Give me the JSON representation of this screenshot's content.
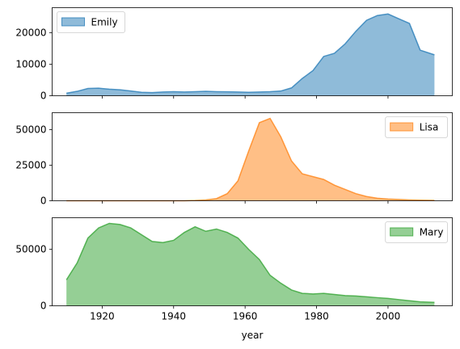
{
  "chart_data": {
    "type": "area",
    "layout": "stacked-subplots-shared-x",
    "xlabel": "year",
    "xlim": [
      1906,
      2018
    ],
    "xticks": [
      1920,
      1940,
      1960,
      1980,
      2000
    ],
    "x": [
      1910,
      1913,
      1916,
      1919,
      1922,
      1925,
      1928,
      1931,
      1934,
      1937,
      1940,
      1943,
      1946,
      1949,
      1952,
      1955,
      1958,
      1961,
      1964,
      1967,
      1970,
      1973,
      1976,
      1979,
      1982,
      1985,
      1988,
      1991,
      1994,
      1997,
      2000,
      2003,
      2006,
      2009,
      2013
    ],
    "grid": false,
    "series": [
      {
        "name": "Emily",
        "color": "#1f77b4",
        "ylim": [
          0,
          28000
        ],
        "yticks": [
          0,
          10000,
          20000
        ],
        "legend": "top-left",
        "values": [
          800,
          1400,
          2300,
          2400,
          2100,
          1900,
          1500,
          1100,
          1000,
          1200,
          1300,
          1200,
          1300,
          1400,
          1300,
          1250,
          1200,
          1100,
          1200,
          1300,
          1500,
          2500,
          5500,
          8000,
          12500,
          13500,
          16500,
          20500,
          24000,
          25500,
          26000,
          24500,
          23000,
          14500,
          13000
        ]
      },
      {
        "name": "Lisa",
        "color": "#ff7f0e",
        "ylim": [
          0,
          62000
        ],
        "yticks": [
          0,
          25000,
          50000
        ],
        "legend": "top-right",
        "values": [
          0,
          0,
          0,
          0,
          0,
          0,
          0,
          0,
          0,
          0,
          0,
          0,
          200,
          600,
          1500,
          5000,
          14000,
          35000,
          55000,
          58000,
          45000,
          28000,
          19000,
          17000,
          15000,
          11000,
          8000,
          5000,
          3000,
          1800,
          1200,
          900,
          600,
          400,
          300
        ]
      },
      {
        "name": "Mary",
        "color": "#2ca02c",
        "ylim": [
          0,
          78000
        ],
        "yticks": [
          0,
          50000
        ],
        "legend": "top-right",
        "values": [
          23000,
          38000,
          60000,
          69000,
          73000,
          72000,
          69000,
          63000,
          57000,
          56000,
          58000,
          65000,
          70000,
          66000,
          68000,
          65000,
          60000,
          50000,
          41000,
          27000,
          20000,
          14000,
          11000,
          10500,
          11000,
          10000,
          9000,
          8700,
          8000,
          7200,
          6500,
          5500,
          4500,
          3500,
          3000
        ]
      }
    ]
  }
}
